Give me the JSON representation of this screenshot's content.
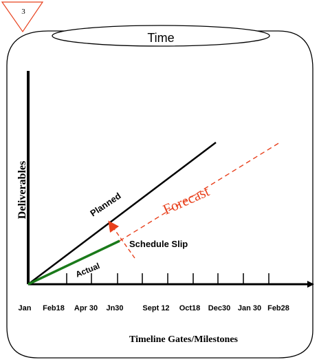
{
  "badge": {
    "number": "3"
  },
  "header": {
    "title": "Time"
  },
  "axes": {
    "y_label": "Deliverables",
    "x_label": "Timeline Gates/Milestones"
  },
  "labels": {
    "planned": "Planned",
    "actual": "Actual",
    "forecast": "Forecast",
    "schedule_slip": "Schedule Slip"
  },
  "ticks": [
    "Jan",
    "Feb18",
    "Apr 30",
    "Jn30",
    "Sept 12",
    "Oct18",
    "Dec30",
    "Jan 30",
    "Feb28"
  ],
  "colors": {
    "planned_line": "#000000",
    "actual_line": "#1a7a1a",
    "forecast_line": "#e8401c",
    "slip_arrow": "#e8401c",
    "badge_stroke": "#e8401c"
  }
}
